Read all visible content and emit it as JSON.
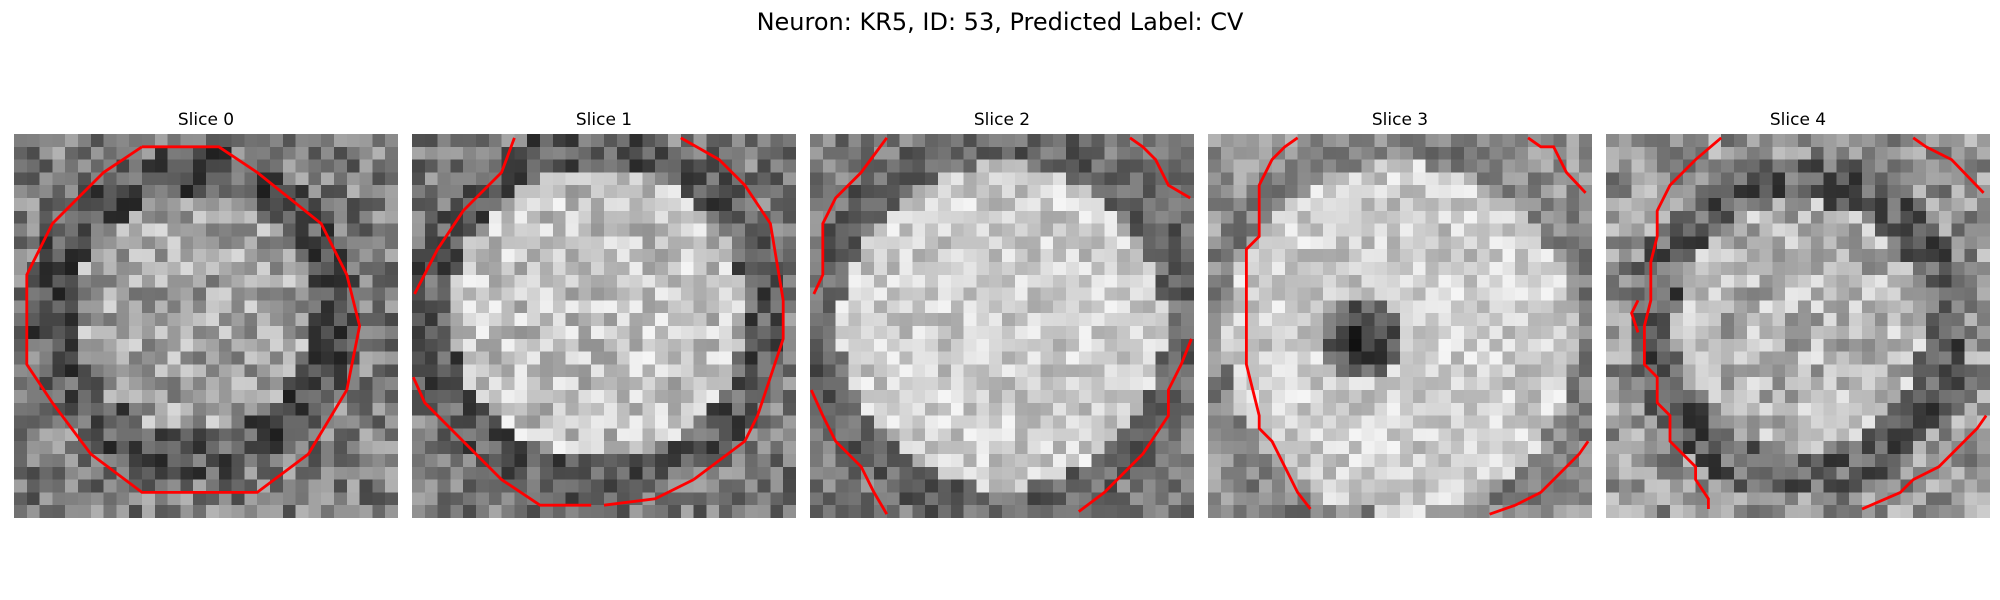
{
  "figure": {
    "title": "Neuron: KR5, ID: 53, Predicted Label: CV"
  },
  "colors": {
    "contour": "#ff0000",
    "background": "#ffffff"
  },
  "slices": [
    {
      "title": "Slice 0"
    },
    {
      "title": "Slice 1"
    },
    {
      "title": "Slice 2"
    },
    {
      "title": "Slice 3"
    },
    {
      "title": "Slice 4"
    }
  ]
}
